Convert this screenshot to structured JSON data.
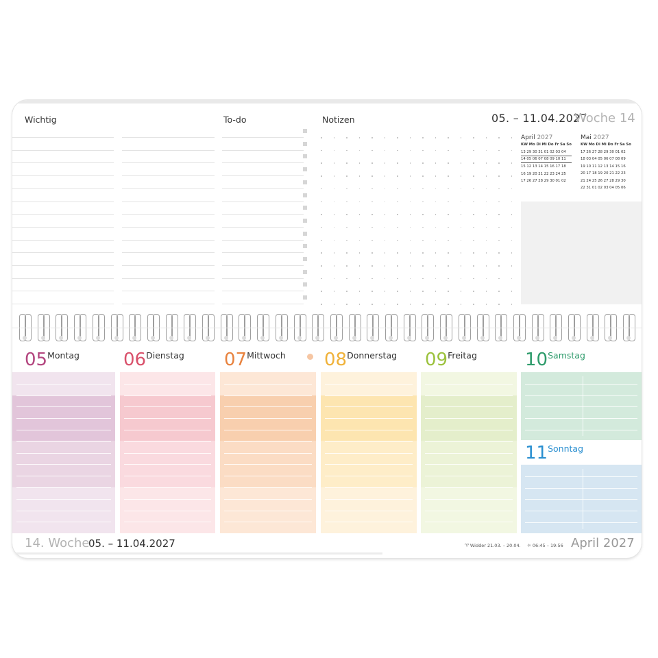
{
  "header": {
    "wichtig": "Wichtig",
    "todo": "To-do",
    "notizen": "Notizen",
    "date_range": "05. – 11.04.2027",
    "week": "Woche 14"
  },
  "mini_calendars": [
    {
      "month": "April",
      "year": "2027",
      "header": "KW Mo Di Mi Do Fr Sa So",
      "rows": [
        "13 29 30 31 01 02 03 04",
        "14 05 06 07 08 09 10 11",
        "15 12 13 14 15 16 17 18",
        "16 19 20 21 22 23 24 25",
        "17 26 27 28 29 30 01 02"
      ]
    },
    {
      "month": "Mai",
      "year": "2027",
      "header": "KW Mo Di Mi Do Fr Sa So",
      "rows": [
        "17 26 27 28 29 30 01 02",
        "18 03 04 05 06 07 08 09",
        "19 10 11 12 13 14 15 16",
        "20 17 18 19 20 21 22 23",
        "21 24 25 26 27 28 29 30",
        "22 31 01 02 03 04 05 06"
      ]
    }
  ],
  "days": [
    {
      "num": "05",
      "name": "Montag",
      "color": "#b3467f"
    },
    {
      "num": "06",
      "name": "Dienstag",
      "color": "#d9516b"
    },
    {
      "num": "07",
      "name": "Mittwoch",
      "color": "#e8833f"
    },
    {
      "num": "08",
      "name": "Donnerstag",
      "color": "#f0b23a"
    },
    {
      "num": "09",
      "name": "Freitag",
      "color": "#9cc23e"
    },
    {
      "num": "10",
      "name": "Samstag",
      "color": "#2e9b6b"
    },
    {
      "num": "11",
      "name": "Sonntag",
      "color": "#2a8fd0"
    }
  ],
  "footer": {
    "week": "14. Woche",
    "range": "05. – 11.04.2027",
    "zodiac": "♈ Widder 21.03. – 20.04.",
    "sun": "☼ 06:45 – 19:56",
    "month": "April 2027"
  },
  "colors": {
    "mo": [
      "#f1e4ee",
      "#e2c5da",
      "#ead5e3"
    ],
    "di": [
      "#fce6e8",
      "#f6c9cf",
      "#fadadf"
    ],
    "mi": [
      "#fde7d6",
      "#f8cfae",
      "#fbdcc4"
    ],
    "do": [
      "#fef2dc",
      "#fde5b0",
      "#feedc8"
    ],
    "fr": [
      "#f2f7e2",
      "#e4eecb",
      "#ecf3d7"
    ],
    "sa": "#d3eadc",
    "so": "#d6e6f2"
  }
}
